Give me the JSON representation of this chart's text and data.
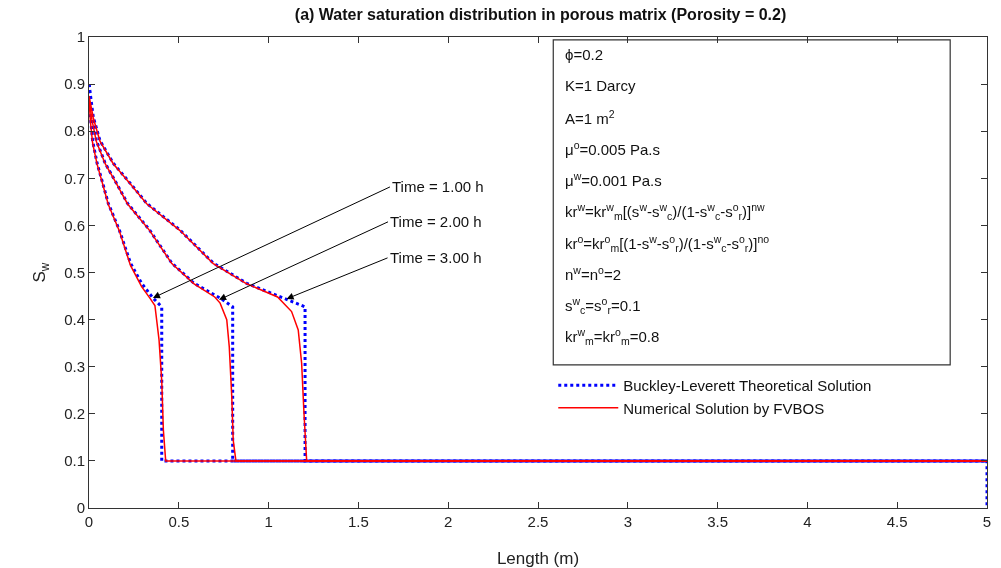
{
  "chart_data": {
    "type": "line",
    "title": "(a) Water saturation distribution in porous matrix (Porosity = 0.2)",
    "xlabel": "Length (m)",
    "ylabel": "S$_{w}$",
    "xlim": [
      0,
      5
    ],
    "xticks": [
      0,
      0.5,
      1,
      1.5,
      2,
      2.5,
      3,
      3.5,
      4,
      4.5,
      5
    ],
    "ylim": [
      0,
      1
    ],
    "yticks": [
      0,
      0.1,
      0.2,
      0.3,
      0.4,
      0.5,
      0.6,
      0.7,
      0.8,
      0.9,
      1
    ],
    "grid": false,
    "legend": "right",
    "marker": "none",
    "series": [
      {
        "name": "Buckley-Leverett Theoretical Solution",
        "color": "#0000ff",
        "line_style": "dotted",
        "x": [
          0,
          0.008,
          0.02,
          0.045,
          0.076,
          0.107,
          0.169,
          0.231,
          0.293,
          0.356,
          0.405,
          0.405,
          5,
          5
        ],
        "values": [
          0.9,
          0.83,
          0.78,
          0.732,
          0.69,
          0.647,
          0.59,
          0.52,
          0.477,
          0.446,
          0.427,
          0.1,
          0.1,
          0
        ]
      },
      {
        "color": "#0000ff",
        "line_style": "dotted",
        "x": [
          0,
          0.016,
          0.041,
          0.09,
          0.152,
          0.214,
          0.338,
          0.461,
          0.585,
          0.733,
          0.8,
          0.8,
          5
        ],
        "values": [
          0.9,
          0.83,
          0.78,
          0.732,
          0.69,
          0.647,
          0.59,
          0.52,
          0.477,
          0.445,
          0.427,
          0.1,
          0.1
        ]
      },
      {
        "color": "#0000ff",
        "line_style": "dotted",
        "x": [
          0,
          0.024,
          0.061,
          0.135,
          0.228,
          0.321,
          0.507,
          0.692,
          0.878,
          1.1,
          1.203,
          1.203,
          5
        ],
        "values": [
          0.9,
          0.83,
          0.78,
          0.732,
          0.69,
          0.647,
          0.59,
          0.52,
          0.477,
          0.443,
          0.427,
          0.1,
          0.1
        ]
      },
      {
        "name": "Numerical Solution by FVBOS",
        "color": "#ff0000",
        "line_style": "solid",
        "x": [
          0,
          0.008,
          0.02,
          0.045,
          0.076,
          0.107,
          0.169,
          0.231,
          0.293,
          0.34,
          0.367,
          0.39,
          0.405,
          0.414,
          0.427,
          5
        ],
        "values": [
          0.87,
          0.82,
          0.775,
          0.73,
          0.688,
          0.645,
          0.588,
          0.515,
          0.47,
          0.445,
          0.43,
          0.357,
          0.27,
          0.166,
          0.1,
          0.1
        ]
      },
      {
        "color": "#ff0000",
        "line_style": "solid",
        "x": [
          0,
          0.016,
          0.041,
          0.09,
          0.152,
          0.214,
          0.338,
          0.461,
          0.585,
          0.7,
          0.73,
          0.767,
          0.781,
          0.795,
          0.803,
          0.818,
          5
        ],
        "values": [
          0.87,
          0.825,
          0.778,
          0.731,
          0.689,
          0.646,
          0.589,
          0.519,
          0.476,
          0.448,
          0.435,
          0.4,
          0.342,
          0.236,
          0.144,
          0.1,
          0.1
        ]
      },
      {
        "color": "#ff0000",
        "line_style": "solid",
        "x": [
          0,
          0.024,
          0.061,
          0.135,
          0.228,
          0.321,
          0.507,
          0.692,
          0.878,
          1.05,
          1.128,
          1.165,
          1.184,
          1.197,
          1.212,
          5
        ],
        "values": [
          0.875,
          0.828,
          0.779,
          0.731,
          0.689,
          0.646,
          0.589,
          0.519,
          0.476,
          0.448,
          0.417,
          0.378,
          0.307,
          0.201,
          0.1,
          0.1
        ]
      }
    ],
    "annotations": [
      "ϕ=0.2",
      "K=1 Darcy",
      "A=1 m$^{2}$",
      "μ$^{o}$=0.005 Pa.s",
      "μ$^{w}$=0.001 Pa.s",
      "kr$^{w}$=kr$^{w}$$_{m}$[(s$^{w}$-s$^{w}$$_{c}$)/(1-s$^{w}$$_{c}$-s$^{o}$$_{r}$)]$^{nw}$",
      "kr$^{o}$=kr$^{o}$$_{m}$[(1-s$^{w}$-s$^{o}$$_{r}$)/(1-s$^{w}$$_{c}$-s$^{o}$$_{r}$)]$^{no}$",
      "n$^{w}$=n$^{o}$=2",
      "s$^{w}$$_{c}$=s$^{o}$$_{r}$=0.1",
      "kr$^{w}$$_{m}$=kr$^{o}$$_{m}$=0.8",
      {
        "text": "Time = 1.00 h",
        "x": 0.356,
        "y": 0.446
      },
      {
        "text": "Time = 2.00 h",
        "x": 0.724,
        "y": 0.442
      },
      {
        "text": "Time = 3.00 h",
        "x": 1.1,
        "y": 0.444
      }
    ]
  }
}
